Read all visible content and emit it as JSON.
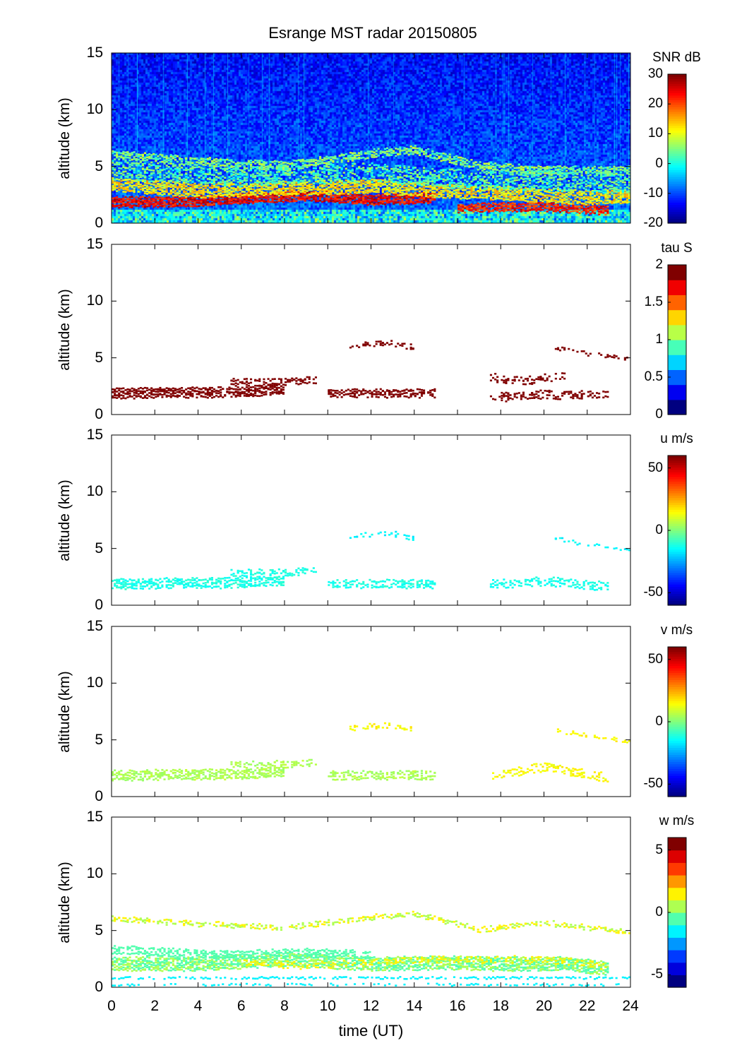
{
  "chart_data": {
    "type": "heatmap",
    "title": "Esrange MST radar 20150805",
    "xlabel": "time (UT)",
    "xlim": [
      0,
      24
    ],
    "xticks": [
      0,
      2,
      4,
      6,
      8,
      10,
      12,
      14,
      16,
      18,
      20,
      22,
      24
    ],
    "panels": [
      {
        "ylabel": "altitude (km)",
        "ylim": [
          0,
          15
        ],
        "yticks": [
          0,
          5,
          10,
          15
        ],
        "colorbar": {
          "label": "SNR dB",
          "range": [
            -20,
            30
          ],
          "ticks": [
            -20,
            -10,
            0,
            10,
            20,
            30
          ],
          "levels": 64
        },
        "background": -12,
        "layers": [
          {
            "value": 24,
            "thickness": 0.9,
            "density": 0.95,
            "points": [
              [
                0,
                2.0
              ],
              [
                3,
                2.0
              ],
              [
                6,
                2.3
              ],
              [
                9,
                2.6
              ],
              [
                12,
                2.2
              ],
              [
                15,
                2.4
              ]
            ]
          },
          {
            "value": 22,
            "thickness": 0.8,
            "density": 0.9,
            "points": [
              [
                16,
                1.5
              ],
              [
                18,
                1.6
              ],
              [
                20,
                1.6
              ],
              [
                23,
                1.3
              ]
            ]
          },
          {
            "value": 12,
            "thickness": 1.2,
            "density": 0.8,
            "points": [
              [
                0,
                3.6
              ],
              [
                4,
                3.0
              ],
              [
                8,
                3.2
              ],
              [
                12,
                3.4
              ],
              [
                15,
                3.0
              ],
              [
                18,
                2.8
              ],
              [
                22,
                2.4
              ],
              [
                24,
                2.5
              ]
            ]
          },
          {
            "value": 5,
            "thickness": 0.8,
            "density": 0.7,
            "points": [
              [
                0,
                6.2
              ],
              [
                4,
                5.6
              ],
              [
                8,
                5.2
              ],
              [
                12,
                6.3
              ],
              [
                14,
                6.6
              ],
              [
                17,
                5.2
              ],
              [
                20,
                4.8
              ],
              [
                24,
                4.8
              ]
            ]
          },
          {
            "value": 3,
            "thickness": 1.6,
            "density": 0.5,
            "points": [
              [
                0,
                4.8
              ],
              [
                6,
                4.2
              ],
              [
                12,
                4.6
              ],
              [
                16,
                4.0
              ],
              [
                20,
                3.8
              ],
              [
                24,
                3.6
              ]
            ]
          }
        ]
      },
      {
        "ylabel": "altitude (km)",
        "ylim": [
          0,
          15
        ],
        "yticks": [
          0,
          5,
          10,
          15
        ],
        "colorbar": {
          "label": "tau S",
          "range": [
            0,
            2
          ],
          "ticks": [
            0,
            0.5,
            1,
            1.5,
            2
          ],
          "levels": 10
        },
        "layers": [
          {
            "value": 2,
            "thickness": 0.9,
            "density": 0.8,
            "points": [
              [
                0,
                2.0
              ],
              [
                3,
                2.1
              ],
              [
                6,
                2.1
              ],
              [
                8,
                2.4
              ]
            ]
          },
          {
            "value": 2,
            "thickness": 0.6,
            "density": 0.5,
            "points": [
              [
                5.5,
                3.0
              ],
              [
                8,
                3.0
              ],
              [
                9.5,
                3.2
              ]
            ]
          },
          {
            "value": 2,
            "thickness": 0.7,
            "density": 0.6,
            "points": [
              [
                10,
                2.0
              ],
              [
                12,
                2.0
              ],
              [
                15,
                2.0
              ]
            ]
          },
          {
            "value": 2,
            "thickness": 0.4,
            "density": 0.4,
            "points": [
              [
                11,
                6.2
              ],
              [
                13,
                6.4
              ],
              [
                14,
                6.0
              ]
            ]
          },
          {
            "value": 2,
            "thickness": 0.7,
            "density": 0.45,
            "points": [
              [
                17.5,
                1.6
              ],
              [
                20,
                1.9
              ],
              [
                23,
                1.8
              ]
            ]
          },
          {
            "value": 2,
            "thickness": 0.7,
            "density": 0.35,
            "points": [
              [
                17.5,
                3.4
              ],
              [
                19,
                3.0
              ],
              [
                21,
                3.6
              ]
            ]
          },
          {
            "value": 2,
            "thickness": 0.3,
            "density": 0.45,
            "points": [
              [
                20.5,
                6.0
              ],
              [
                22,
                5.5
              ],
              [
                24,
                5.0
              ]
            ]
          }
        ]
      },
      {
        "ylabel": "altitude (km)",
        "ylim": [
          0,
          15
        ],
        "yticks": [
          0,
          5,
          10,
          15
        ],
        "colorbar": {
          "label": "u m/s",
          "range": [
            -60,
            60
          ],
          "ticks": [
            -50,
            0,
            50
          ],
          "levels": 64
        },
        "layers": [
          {
            "value": -12,
            "thickness": 0.9,
            "density": 0.7,
            "points": [
              [
                0,
                2.0
              ],
              [
                3,
                2.1
              ],
              [
                6,
                2.1
              ],
              [
                8,
                2.4
              ]
            ]
          },
          {
            "value": -12,
            "thickness": 0.6,
            "density": 0.45,
            "points": [
              [
                5.5,
                3.0
              ],
              [
                8,
                3.0
              ],
              [
                9.5,
                3.2
              ]
            ]
          },
          {
            "value": -12,
            "thickness": 0.7,
            "density": 0.5,
            "points": [
              [
                10,
                2.0
              ],
              [
                12,
                2.0
              ],
              [
                15,
                2.0
              ]
            ]
          },
          {
            "value": -15,
            "thickness": 0.4,
            "density": 0.35,
            "points": [
              [
                11,
                6.2
              ],
              [
                13,
                6.4
              ],
              [
                14,
                6.0
              ]
            ]
          },
          {
            "value": -12,
            "thickness": 0.8,
            "density": 0.45,
            "points": [
              [
                17.5,
                2.0
              ],
              [
                20,
                2.3
              ],
              [
                23,
                1.8
              ]
            ]
          },
          {
            "value": -15,
            "thickness": 0.3,
            "density": 0.4,
            "points": [
              [
                20.5,
                6.0
              ],
              [
                22,
                5.5
              ],
              [
                24,
                5.0
              ]
            ]
          }
        ]
      },
      {
        "ylabel": "altitude (km)",
        "ylim": [
          0,
          15
        ],
        "yticks": [
          0,
          5,
          10,
          15
        ],
        "colorbar": {
          "label": "v m/s",
          "range": [
            -60,
            60
          ],
          "ticks": [
            -50,
            0,
            50
          ],
          "levels": 64
        },
        "layers": [
          {
            "value": 5,
            "thickness": 0.9,
            "density": 0.7,
            "points": [
              [
                0,
                2.0
              ],
              [
                3,
                2.1
              ],
              [
                6,
                2.1
              ],
              [
                8,
                2.4
              ]
            ]
          },
          {
            "value": 5,
            "thickness": 0.6,
            "density": 0.45,
            "points": [
              [
                5.5,
                3.0
              ],
              [
                8,
                3.0
              ],
              [
                9.5,
                3.2
              ]
            ]
          },
          {
            "value": 5,
            "thickness": 0.7,
            "density": 0.5,
            "points": [
              [
                10,
                2.0
              ],
              [
                12,
                2.0
              ],
              [
                15,
                2.0
              ]
            ]
          },
          {
            "value": 15,
            "thickness": 0.4,
            "density": 0.35,
            "points": [
              [
                11,
                6.2
              ],
              [
                13,
                6.4
              ],
              [
                14,
                6.0
              ]
            ]
          },
          {
            "value": 15,
            "thickness": 0.8,
            "density": 0.45,
            "points": [
              [
                17.5,
                2.0
              ],
              [
                20,
                2.8
              ],
              [
                23,
                1.8
              ]
            ]
          },
          {
            "value": 15,
            "thickness": 0.3,
            "density": 0.4,
            "points": [
              [
                20.5,
                6.0
              ],
              [
                22,
                5.5
              ],
              [
                24,
                5.0
              ]
            ]
          }
        ]
      },
      {
        "ylabel": "altitude (km)",
        "ylim": [
          0,
          15
        ],
        "yticks": [
          0,
          5,
          10,
          15
        ],
        "colorbar": {
          "label": "w m/s",
          "range": [
            -6,
            6
          ],
          "ticks": [
            -5,
            0,
            5
          ],
          "levels": 12
        },
        "layers": [
          {
            "value": 0,
            "thickness": 1.2,
            "density": 0.85,
            "points": [
              [
                0,
                2.2
              ],
              [
                4,
                2.2
              ],
              [
                8,
                2.6
              ],
              [
                12,
                2.2
              ],
              [
                15,
                2.3
              ],
              [
                18,
                2.2
              ],
              [
                21,
                2.2
              ],
              [
                23,
                1.8
              ]
            ]
          },
          {
            "value": -0.5,
            "thickness": 0.8,
            "density": 0.6,
            "points": [
              [
                0,
                3.5
              ],
              [
                5,
                3.0
              ],
              [
                9,
                3.2
              ],
              [
                12,
                3.0
              ]
            ]
          },
          {
            "value": -1.5,
            "thickness": 0.2,
            "density": 0.7,
            "points": [
              [
                0,
                1.0
              ],
              [
                12,
                1.0
              ],
              [
                24,
                1.0
              ]
            ]
          },
          {
            "value": -1.5,
            "thickness": 0.2,
            "density": 0.4,
            "points": [
              [
                0,
                0.4
              ],
              [
                12,
                0.4
              ],
              [
                24,
                0.4
              ]
            ]
          },
          {
            "value": 1,
            "thickness": 0.4,
            "density": 0.5,
            "points": [
              [
                0,
                6.2
              ],
              [
                3,
                5.8
              ],
              [
                8,
                5.4
              ],
              [
                12,
                6.3
              ],
              [
                14,
                6.6
              ],
              [
                17,
                5.2
              ],
              [
                20,
                5.8
              ],
              [
                24,
                5.0
              ]
            ]
          },
          {
            "value": 1.5,
            "thickness": 0.6,
            "density": 0.3,
            "points": [
              [
                6,
                2.4
              ],
              [
                9,
                2.0
              ],
              [
                14,
                2.6
              ],
              [
                20,
                2.6
              ],
              [
                23,
                2.0
              ]
            ]
          }
        ]
      }
    ]
  }
}
